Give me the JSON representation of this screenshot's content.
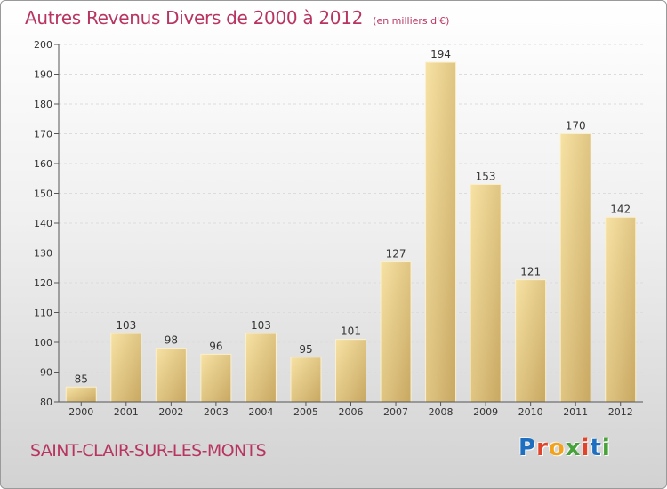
{
  "header": {
    "title": "Autres Revenus Divers de 2000 à 2012",
    "unit": "(en milliers d'€)"
  },
  "footer": {
    "town": "SAINT-CLAIR-SUR-LES-MONTS",
    "logo_text": "Proxiti"
  },
  "colors": {
    "accent": "#b83461",
    "bar_light": "#f5dc98",
    "bar_dark": "#c9a961",
    "logo": [
      "#1f6fc0",
      "#e0442a",
      "#f2a31b",
      "#46a33a",
      "#e0442a",
      "#1f6fc0",
      "#46a33a"
    ]
  },
  "chart_data": {
    "type": "bar",
    "title": "Autres Revenus Divers de 2000 à 2012",
    "subtitle": "(en milliers d'€)",
    "categories": [
      "2000",
      "2001",
      "2002",
      "2003",
      "2004",
      "2005",
      "2006",
      "2007",
      "2008",
      "2009",
      "2010",
      "2011",
      "2012"
    ],
    "values": [
      85,
      103,
      98,
      96,
      103,
      95,
      101,
      127,
      194,
      153,
      121,
      170,
      142
    ],
    "ylim": [
      80,
      200
    ],
    "yticks": [
      80,
      90,
      100,
      110,
      120,
      130,
      140,
      150,
      160,
      170,
      180,
      190,
      200
    ],
    "grid": true,
    "data_labels": true
  }
}
